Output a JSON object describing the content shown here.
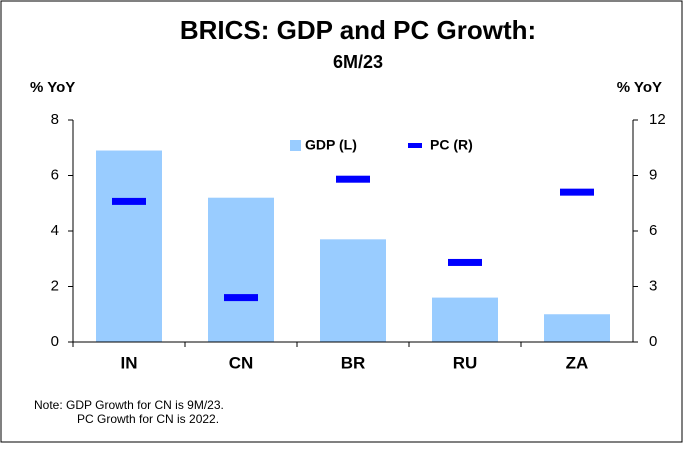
{
  "chart_data": {
    "type": "bar",
    "title": "BRICS: GDP and PC Growth:",
    "subtitle": "6M/23",
    "y_label": "% YoY",
    "y2_label": "% YoY",
    "categories": [
      "IN",
      "CN",
      "BR",
      "RU",
      "ZA"
    ],
    "series": [
      {
        "name": "GDP (L)",
        "color": "#99ccff",
        "values": [
          6.9,
          5.2,
          3.7,
          1.6,
          1.0
        ],
        "axis": "y"
      },
      {
        "name": "PC (R)",
        "color": "#0000ff",
        "values": [
          7.6,
          2.4,
          8.8,
          4.3,
          8.1
        ],
        "axis": "y2"
      }
    ],
    "ylim": [
      0,
      8
    ],
    "yticks": [
      0,
      2,
      4,
      6,
      8
    ],
    "y2lim": [
      0,
      12
    ],
    "y2ticks": [
      0,
      3,
      6,
      9,
      12
    ],
    "notes": [
      "Note: GDP Growth for CN is 9M/23.",
      "PC Growth for CN is 2022."
    ]
  }
}
